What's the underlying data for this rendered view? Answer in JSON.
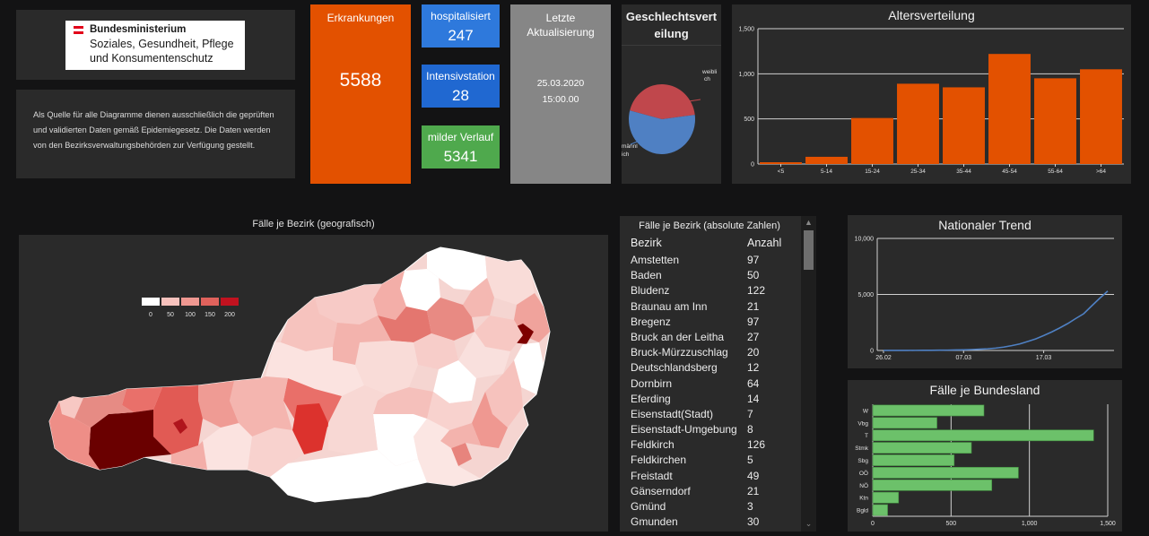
{
  "logo": {
    "title": "Bundesministerium",
    "subtitle_1": "Soziales, Gesundheit, Pflege",
    "subtitle_2": "und Konsumentenschutz",
    "flag_colors": [
      "#e2001a",
      "#ffffff",
      "#e2001a"
    ]
  },
  "source_text": "Als Quelle für alle Diagramme dienen ausschließlich die geprüften und validierten Daten gemäß Epidemiegesetz. Die Daten werden von den Bezirksverwaltungsbehörden zur Verfügung gestellt.",
  "kpis": {
    "erkrankungen": {
      "label": "Erkrankungen",
      "value": "5588",
      "color": "#e35100"
    },
    "hospitalisiert": {
      "label": "hospitalisiert",
      "value": "247",
      "color": "#2e79dc"
    },
    "intensivstation": {
      "label": "Intensivstation",
      "value": "28",
      "color": "#2068d1"
    },
    "milder_verlauf": {
      "label": "milder Verlauf",
      "value": "5341",
      "color": "#4fa94d"
    },
    "update": {
      "label_1": "Letzte",
      "label_2": "Aktualisierung",
      "date": "25.03.2020",
      "time": "15:00.00"
    }
  },
  "charts": [
    {
      "id": "gender",
      "chart_data": {
        "type": "pie",
        "title_1": "Geschlechtsvert",
        "title_2": "eilung",
        "slices": [
          {
            "label_1": "weibli",
            "label_2": "ch",
            "value": 44,
            "color": "#c0474c"
          },
          {
            "label_1": "männl",
            "label_2": "ich",
            "value": 56,
            "color": "#4f80c3"
          }
        ]
      }
    },
    {
      "id": "age",
      "chart_data": {
        "type": "bar",
        "title": "Altersverteilung",
        "categories": [
          "<5",
          "5-14",
          "15-24",
          "25-34",
          "35-44",
          "45-54",
          "55-64",
          ">64"
        ],
        "values": [
          20,
          80,
          510,
          890,
          850,
          1220,
          950,
          1050
        ],
        "ylim": [
          0,
          1500
        ],
        "yticks": [
          0,
          500,
          1000,
          1500
        ],
        "ytick_labels": [
          "0",
          "500",
          "1,000",
          "1,500"
        ],
        "color": "#e35100",
        "grid": true
      }
    },
    {
      "id": "trend",
      "chart_data": {
        "type": "line",
        "title": "Nationaler Trend",
        "x": [
          "26.02",
          "27.02",
          "28.02",
          "29.02",
          "01.03",
          "02.03",
          "03.03",
          "04.03",
          "05.03",
          "06.03",
          "07.03",
          "08.03",
          "09.03",
          "10.03",
          "11.03",
          "12.03",
          "13.03",
          "14.03",
          "15.03",
          "16.03",
          "17.03",
          "18.03",
          "19.03",
          "20.03",
          "21.03",
          "22.03",
          "23.03",
          "24.03",
          "25.03"
        ],
        "values": [
          2,
          3,
          5,
          8,
          10,
          12,
          18,
          24,
          30,
          42,
          56,
          80,
          112,
          150,
          210,
          300,
          430,
          580,
          800,
          1030,
          1330,
          1650,
          2010,
          2400,
          2850,
          3280,
          3980,
          4660,
          5300
        ],
        "xtick_labels": [
          "26.02",
          "07.03",
          "17.03"
        ],
        "ylim": [
          0,
          10000
        ],
        "yticks": [
          0,
          5000,
          10000
        ],
        "ytick_labels": [
          "0",
          "5,000",
          "10,000"
        ],
        "color": "#4f80c3"
      }
    },
    {
      "id": "bundesland",
      "chart_data": {
        "type": "bar",
        "orientation": "horizontal",
        "title": "Fälle je Bundesland",
        "categories": [
          "W",
          "Vbg",
          "T",
          "Stmk",
          "Sbg",
          "OÖ",
          "NÖ",
          "Ktn",
          "Bgld"
        ],
        "values": [
          710,
          410,
          1410,
          630,
          520,
          930,
          760,
          165,
          95
        ],
        "xlim": [
          0,
          1500
        ],
        "xticks": [
          0,
          500,
          1000,
          1500
        ],
        "xtick_labels": [
          "0",
          "500",
          "1,000",
          "1,500"
        ],
        "color": "#6cc16a"
      }
    }
  ],
  "map": {
    "title": "Fälle je Bezirk (geografisch)",
    "legend": {
      "labels": [
        "0",
        "50",
        "100",
        "150",
        "200"
      ],
      "colors": [
        "#ffffff",
        "#f7c2bd",
        "#ef9891",
        "#e0625c",
        "#c1121f"
      ]
    }
  },
  "table": {
    "title": "Fälle je Bezirk (absolute Zahlen)",
    "headers": [
      "Bezirk",
      "Anzahl"
    ],
    "rows": [
      [
        "Amstetten",
        "97"
      ],
      [
        "Baden",
        "50"
      ],
      [
        "Bludenz",
        "122"
      ],
      [
        "Braunau am Inn",
        "21"
      ],
      [
        "Bregenz",
        "97"
      ],
      [
        "Bruck an der Leitha",
        "27"
      ],
      [
        "Bruck-Mürzzuschlag",
        "20"
      ],
      [
        "Deutschlandsberg",
        "12"
      ],
      [
        "Dornbirn",
        "64"
      ],
      [
        "Eferding",
        "14"
      ],
      [
        "Eisenstadt(Stadt)",
        "7"
      ],
      [
        "Eisenstadt-Umgebung",
        "8"
      ],
      [
        "Feldkirch",
        "126"
      ],
      [
        "Feldkirchen",
        "5"
      ],
      [
        "Freistadt",
        "49"
      ],
      [
        "Gänserndorf",
        "21"
      ],
      [
        "Gmünd",
        "3"
      ],
      [
        "Gmunden",
        "30"
      ]
    ]
  }
}
